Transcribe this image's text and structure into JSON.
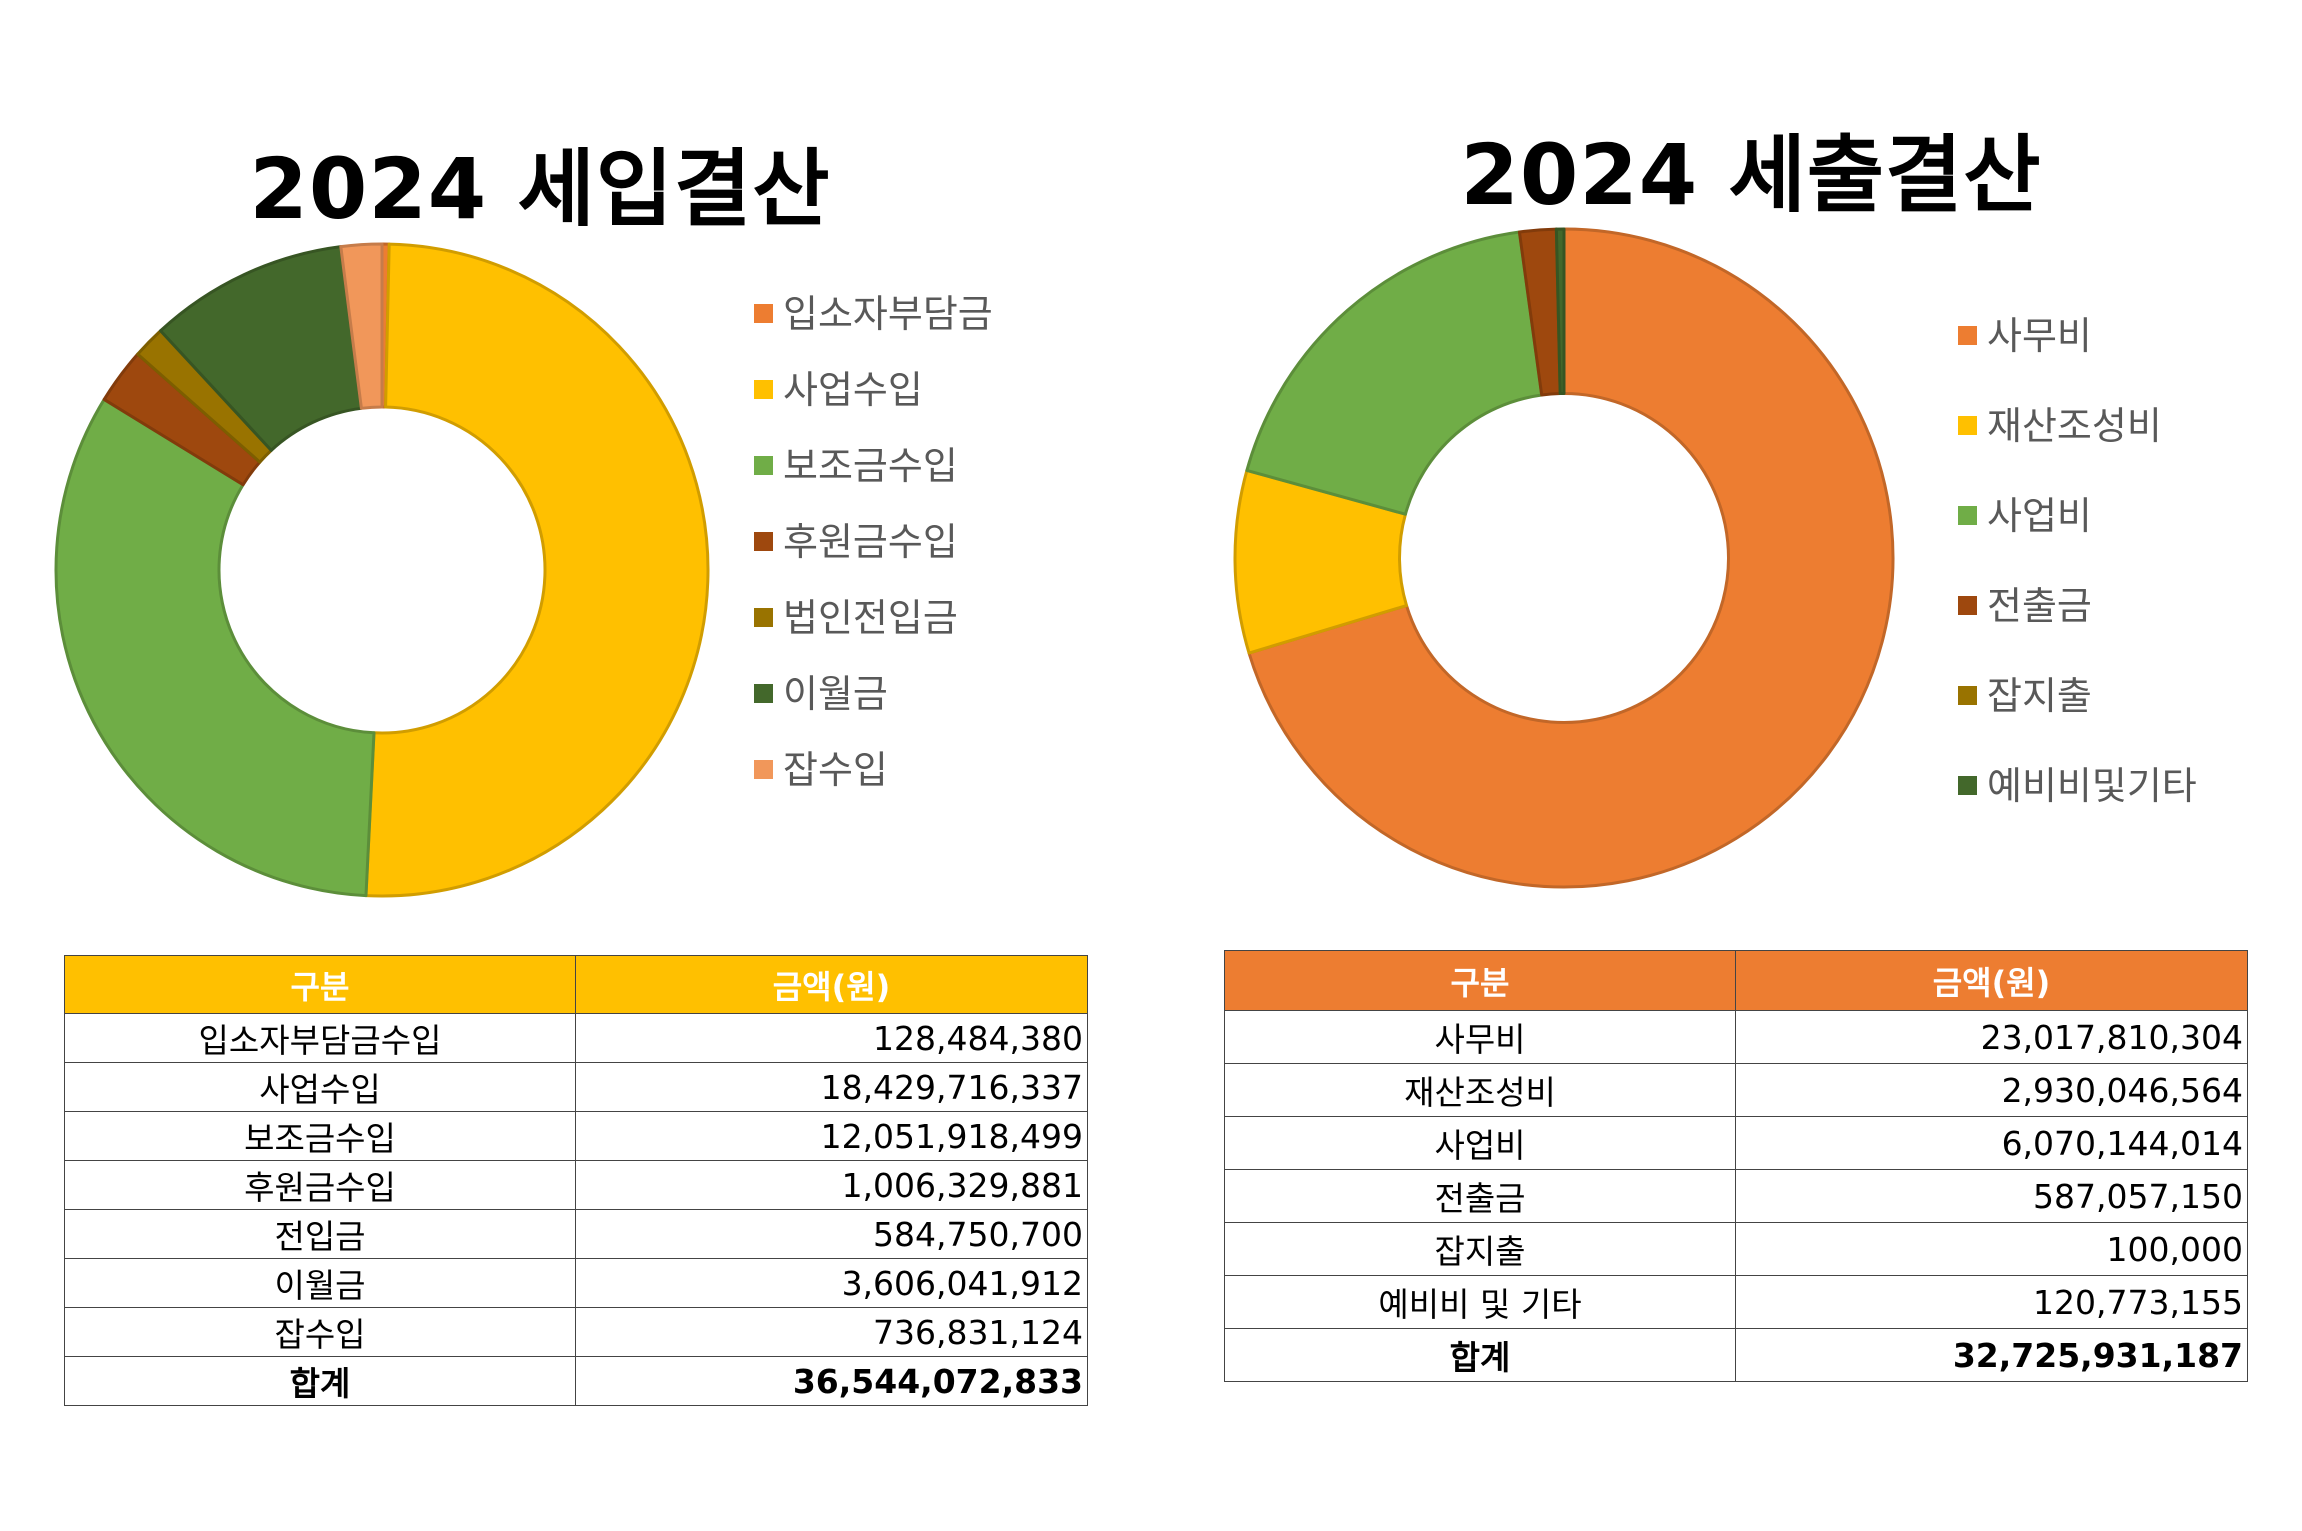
{
  "chart_data": [
    {
      "type": "pie",
      "title": "2024 세입결산",
      "legend_position": "right",
      "categories": [
        "입소자부담금",
        "사업수입",
        "보조금수입",
        "후원금수입",
        "법인전입금",
        "이월금",
        "잡수입"
      ],
      "values": [
        128484380,
        18429716337,
        12051918499,
        1006329881,
        584750700,
        3606041912,
        736831124
      ],
      "colors": [
        "#ED7D31",
        "#FFC000",
        "#70AD47",
        "#9E480E",
        "#997300",
        "#43682B",
        "#F1975A"
      ]
    },
    {
      "type": "pie",
      "title": "2024 세출결산",
      "legend_position": "right",
      "categories": [
        "사무비",
        "재산조성비",
        "사업비",
        "전출금",
        "잡지출",
        "예비비및기타"
      ],
      "values": [
        23017810304,
        2930046564,
        6070144014,
        587057150,
        100000,
        120773155
      ],
      "colors": [
        "#ED7D31",
        "#FFC000",
        "#70AD47",
        "#9E480E",
        "#997300",
        "#43682B"
      ]
    }
  ],
  "tables": {
    "income": {
      "header_color": "#FFC000",
      "headers": [
        "구분",
        "금액(원)"
      ],
      "rows": [
        [
          "입소자부담금수입",
          "128,484,380"
        ],
        [
          "사업수입",
          "18,429,716,337"
        ],
        [
          "보조금수입",
          "12,051,918,499"
        ],
        [
          "후원금수입",
          "1,006,329,881"
        ],
        [
          "전입금",
          "584,750,700"
        ],
        [
          "이월금",
          "3,606,041,912"
        ],
        [
          "잡수입",
          "736,831,124"
        ]
      ],
      "total": [
        "합계",
        "36,544,072,833"
      ]
    },
    "expense": {
      "header_color": "#ED7D31",
      "headers": [
        "구분",
        "금액(원)"
      ],
      "rows": [
        [
          "사무비",
          "23,017,810,304"
        ],
        [
          "재산조성비",
          "2,930,046,564"
        ],
        [
          "사업비",
          "6,070,144,014"
        ],
        [
          "전출금",
          "587,057,150"
        ],
        [
          "잡지출",
          "100,000"
        ],
        [
          "예비비 및 기타",
          "120,773,155"
        ]
      ],
      "total": [
        "합계",
        "32,725,931,187"
      ]
    }
  }
}
